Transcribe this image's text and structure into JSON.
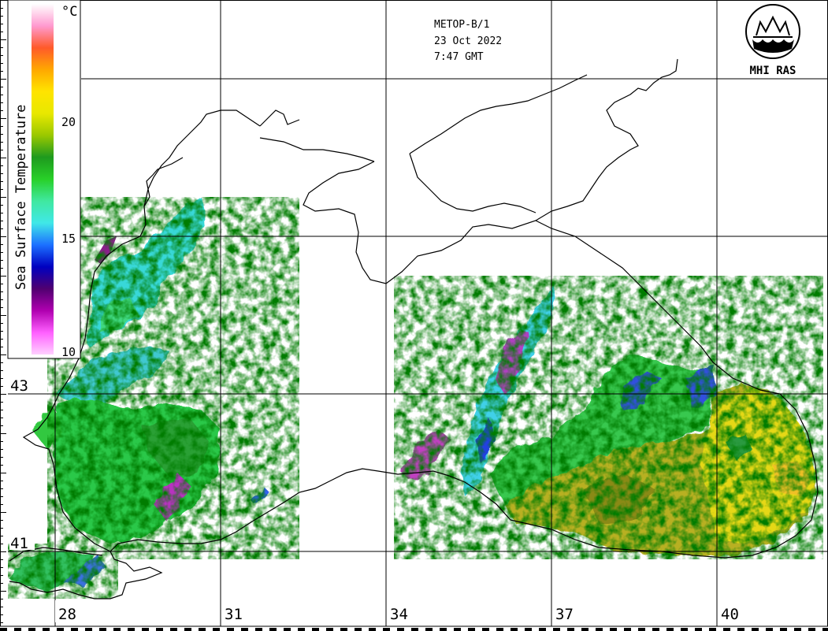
{
  "header": {
    "satellite": "METOP-B/1",
    "date": "23 Oct 2022",
    "time": "7:47 GMT"
  },
  "logo": {
    "text": "MHI RAS"
  },
  "colorbar": {
    "title": "Sea Surface Temperature",
    "unit": "°C",
    "ticks": [
      "20",
      "15",
      "10"
    ],
    "colors": [
      "#ffffff",
      "#ff9ad0",
      "#ff5a2a",
      "#ffa800",
      "#ffe400",
      "#e8e800",
      "#9ac800",
      "#1e9a1e",
      "#28d028",
      "#40e8a0",
      "#40e8e8",
      "#1c70ff",
      "#0000c0",
      "#500070",
      "#b000b0",
      "#ff60ff",
      "#ffd0ff"
    ]
  },
  "grid": {
    "longitude_labels": [
      "28",
      "31",
      "34",
      "37",
      "40"
    ],
    "latitude_labels": [
      "43",
      "41"
    ]
  }
}
